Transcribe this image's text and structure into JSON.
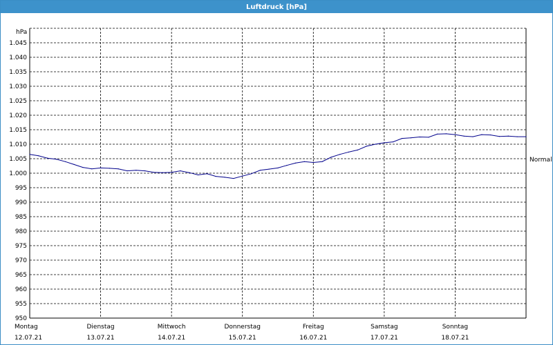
{
  "window": {
    "title": "Luftdruck [hPa]"
  },
  "chart_data": {
    "type": "line",
    "title": "Luftdruck [hPa]",
    "ylabel": "hPa",
    "ylim": [
      950,
      1050
    ],
    "xlim": [
      0,
      7
    ],
    "yticks": [
      950,
      955,
      960,
      965,
      970,
      975,
      980,
      985,
      990,
      995,
      1000,
      1005,
      1010,
      1015,
      1020,
      1025,
      1030,
      1035,
      1040,
      1045
    ],
    "ytick_labels": [
      "950",
      "955",
      "960",
      "965",
      "970",
      "975",
      "980",
      "985",
      "990",
      "995",
      "1.000",
      "1.005",
      "1.010",
      "1.015",
      "1.020",
      "1.025",
      "1.030",
      "1.035",
      "1.040",
      "1.045"
    ],
    "x_categories": [
      {
        "day": "Montag",
        "date": "12.07.21"
      },
      {
        "day": "Dienstag",
        "date": "13.07.21"
      },
      {
        "day": "Mittwoch",
        "date": "14.07.21"
      },
      {
        "day": "Donnerstag",
        "date": "15.07.21"
      },
      {
        "day": "Freitag",
        "date": "16.07.21"
      },
      {
        "day": "Samstag",
        "date": "17.07.21"
      },
      {
        "day": "Sonntag",
        "date": "18.07.21"
      }
    ],
    "grid": true,
    "reference_line": {
      "label": "Normal",
      "value": 1010
    },
    "series": [
      {
        "color": "#00008b",
        "x": [
          0,
          0.125,
          0.25,
          0.375,
          0.5,
          0.625,
          0.75,
          0.875,
          1.0,
          1.125,
          1.25,
          1.375,
          1.5,
          1.625,
          1.75,
          1.875,
          2.0,
          2.125,
          2.25,
          2.375,
          2.5,
          2.625,
          2.75,
          2.875,
          3.0,
          3.125,
          3.25,
          3.375,
          3.5,
          3.625,
          3.75,
          3.875,
          4.0,
          4.125,
          4.25,
          4.375,
          4.5,
          4.625,
          4.75,
          4.875,
          5.0,
          5.125,
          5.25,
          5.375,
          5.5,
          5.625,
          5.75,
          5.875,
          6.0,
          6.125,
          6.25,
          6.375,
          6.5,
          6.625,
          6.75,
          6.875,
          7.0
        ],
        "values": [
          1006.5,
          1006.0,
          1005.2,
          1004.8,
          1004.0,
          1003.0,
          1002.0,
          1001.5,
          1001.8,
          1001.7,
          1001.5,
          1000.8,
          1001.0,
          1000.8,
          1000.3,
          1000.2,
          1000.3,
          1000.8,
          1000.2,
          999.4,
          999.8,
          998.9,
          998.6,
          998.2,
          999.0,
          999.8,
          1001.0,
          1001.4,
          1001.8,
          1002.7,
          1003.5,
          1004.0,
          1003.7,
          1004.0,
          1005.5,
          1006.5,
          1007.3,
          1008.0,
          1009.3,
          1010.0,
          1010.5,
          1010.8,
          1012.0,
          1012.2,
          1012.5,
          1012.4,
          1013.5,
          1013.6,
          1013.3,
          1012.8,
          1012.6,
          1013.3,
          1013.2,
          1012.7,
          1012.8,
          1012.6,
          1012.6
        ]
      }
    ]
  }
}
